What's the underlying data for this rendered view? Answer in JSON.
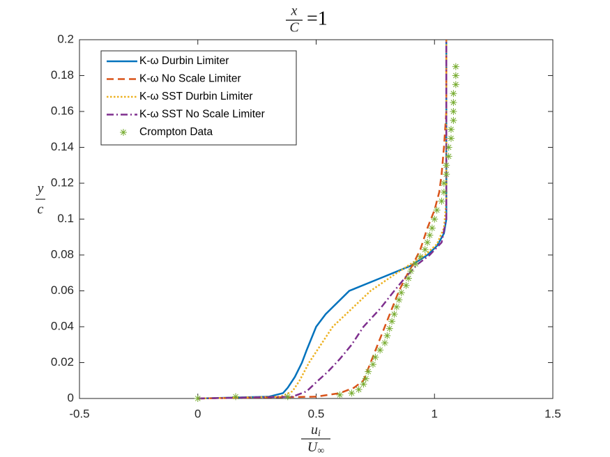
{
  "chart_data": {
    "type": "line",
    "title": {
      "numerator": "x",
      "denominator": "C",
      "suffix": "=1"
    },
    "ylabel": {
      "numerator": "y",
      "denominator": "c"
    },
    "xlabel": {
      "numerator": "u",
      "numerator_sub": "i",
      "denominator": "U",
      "denominator_sub": "∞"
    },
    "xlim": [
      -0.5,
      1.5
    ],
    "xticks": [
      -0.5,
      0,
      0.5,
      1,
      1.5
    ],
    "ylim": [
      0,
      0.2
    ],
    "yticks": [
      0,
      0.02,
      0.04,
      0.06,
      0.08,
      0.1,
      0.12,
      0.14,
      0.16,
      0.18,
      0.2
    ],
    "legend": "northwest",
    "series": [
      {
        "name": "K-ω Durbin Limiter",
        "color": "#0072BD",
        "style": "solid",
        "x": [
          0,
          0.3,
          0.36,
          0.38,
          0.41,
          0.44,
          0.46,
          0.5,
          0.54,
          0.64,
          0.77,
          0.9,
          0.97,
          1.01,
          1.04,
          1.05,
          1.05,
          1.05,
          1.05
        ],
        "y": [
          0,
          0.001,
          0.003,
          0.006,
          0.012,
          0.02,
          0.027,
          0.04,
          0.047,
          0.06,
          0.067,
          0.074,
          0.08,
          0.085,
          0.092,
          0.1,
          0.12,
          0.15,
          0.2
        ]
      },
      {
        "name": "K-ω No Scale Limiter",
        "color": "#D95319",
        "style": "dashed",
        "x": [
          0,
          0.5,
          0.6,
          0.66,
          0.7,
          0.73,
          0.76,
          0.79,
          0.82,
          0.85,
          0.88,
          0.91,
          0.94,
          0.97,
          1.0,
          1.02,
          1.03,
          1.04,
          1.05,
          1.05
        ],
        "y": [
          0,
          0.001,
          0.003,
          0.006,
          0.01,
          0.02,
          0.03,
          0.04,
          0.05,
          0.06,
          0.068,
          0.075,
          0.083,
          0.095,
          0.105,
          0.115,
          0.125,
          0.14,
          0.16,
          0.2
        ]
      },
      {
        "name": "K-ω SST Durbin Limiter",
        "color": "#EDB120",
        "style": "dotted",
        "x": [
          0,
          0.35,
          0.4,
          0.43,
          0.47,
          0.52,
          0.57,
          0.65,
          0.73,
          0.83,
          0.9,
          0.96,
          1.01,
          1.04,
          1.05,
          1.05
        ],
        "y": [
          0,
          0.001,
          0.004,
          0.01,
          0.02,
          0.03,
          0.04,
          0.05,
          0.06,
          0.069,
          0.075,
          0.08,
          0.086,
          0.095,
          0.11,
          0.2
        ]
      },
      {
        "name": "K-ω SST No Scale Limiter",
        "color": "#7E2F8E",
        "style": "dashdot",
        "x": [
          0,
          0.4,
          0.46,
          0.5,
          0.55,
          0.6,
          0.65,
          0.7,
          0.77,
          0.83,
          0.88,
          0.93,
          0.98,
          1.03,
          1.05,
          1.05
        ],
        "y": [
          0,
          0.001,
          0.004,
          0.009,
          0.015,
          0.022,
          0.03,
          0.04,
          0.05,
          0.06,
          0.068,
          0.075,
          0.08,
          0.087,
          0.1,
          0.2
        ]
      },
      {
        "name": "Crompton Data",
        "color": "#77AC30",
        "style": "marker",
        "x": [
          0,
          0.16,
          0.38,
          0.6,
          0.65,
          0.68,
          0.7,
          0.71,
          0.72,
          0.74,
          0.75,
          0.77,
          0.79,
          0.8,
          0.81,
          0.82,
          0.83,
          0.84,
          0.85,
          0.86,
          0.88,
          0.89,
          0.9,
          0.92,
          0.94,
          0.96,
          0.97,
          0.98,
          0.99,
          1.0,
          1.01,
          1.03,
          1.04,
          1.04,
          1.05,
          1.05,
          1.06,
          1.06,
          1.07,
          1.07,
          1.08,
          1.08,
          1.08,
          1.08,
          1.09,
          1.09,
          1.09
        ],
        "y": [
          0,
          0.001,
          0.001,
          0.002,
          0.003,
          0.005,
          0.008,
          0.011,
          0.015,
          0.019,
          0.023,
          0.027,
          0.031,
          0.035,
          0.039,
          0.043,
          0.047,
          0.051,
          0.055,
          0.059,
          0.063,
          0.067,
          0.071,
          0.075,
          0.079,
          0.083,
          0.087,
          0.091,
          0.095,
          0.1,
          0.105,
          0.11,
          0.115,
          0.12,
          0.125,
          0.13,
          0.135,
          0.14,
          0.145,
          0.15,
          0.155,
          0.16,
          0.165,
          0.17,
          0.175,
          0.18,
          0.185
        ]
      }
    ]
  }
}
